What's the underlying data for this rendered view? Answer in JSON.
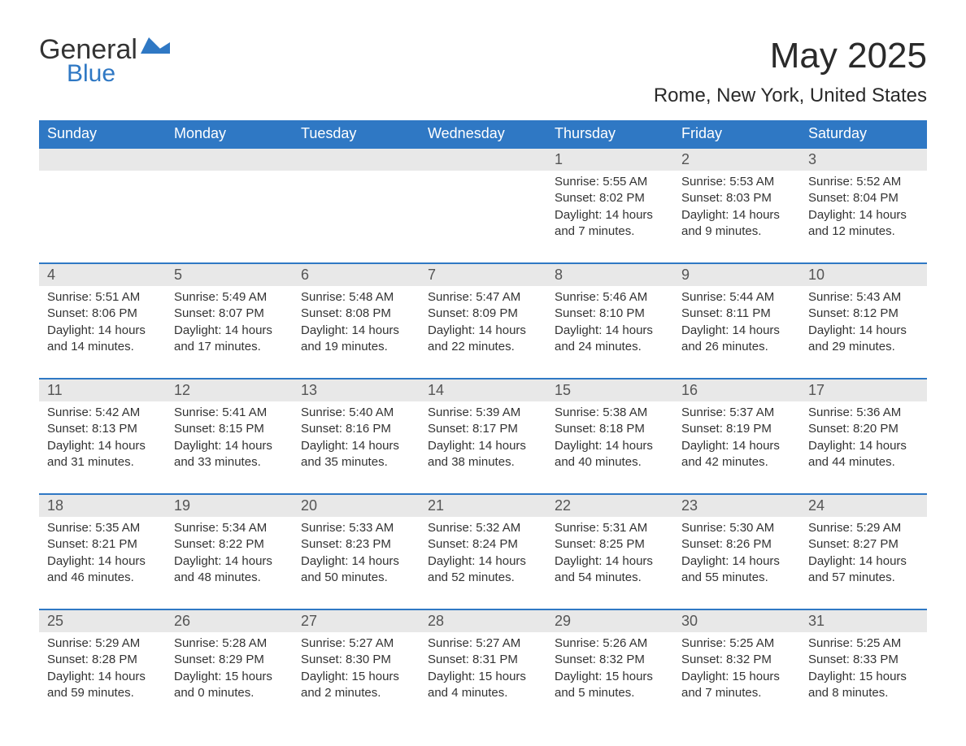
{
  "logo": {
    "text_general": "General",
    "text_blue": "Blue",
    "icon_color": "#2f78c4"
  },
  "header": {
    "title": "May 2025",
    "subtitle": "Rome, New York, United States"
  },
  "colors": {
    "header_bg": "#2f78c4",
    "header_text": "#ffffff",
    "daynum_bg": "#e8e8e8",
    "body_text": "#333333",
    "row_border": "#2f78c4",
    "page_bg": "#ffffff"
  },
  "typography": {
    "title_fontsize": 44,
    "subtitle_fontsize": 24,
    "weekday_fontsize": 18,
    "daynum_fontsize": 18,
    "body_fontsize": 15
  },
  "layout": {
    "columns": 7,
    "rows": 5
  },
  "weekdays": [
    "Sunday",
    "Monday",
    "Tuesday",
    "Wednesday",
    "Thursday",
    "Friday",
    "Saturday"
  ],
  "weeks": [
    [
      null,
      null,
      null,
      null,
      {
        "n": "1",
        "sunrise": "Sunrise: 5:55 AM",
        "sunset": "Sunset: 8:02 PM",
        "daylight": "Daylight: 14 hours and 7 minutes."
      },
      {
        "n": "2",
        "sunrise": "Sunrise: 5:53 AM",
        "sunset": "Sunset: 8:03 PM",
        "daylight": "Daylight: 14 hours and 9 minutes."
      },
      {
        "n": "3",
        "sunrise": "Sunrise: 5:52 AM",
        "sunset": "Sunset: 8:04 PM",
        "daylight": "Daylight: 14 hours and 12 minutes."
      }
    ],
    [
      {
        "n": "4",
        "sunrise": "Sunrise: 5:51 AM",
        "sunset": "Sunset: 8:06 PM",
        "daylight": "Daylight: 14 hours and 14 minutes."
      },
      {
        "n": "5",
        "sunrise": "Sunrise: 5:49 AM",
        "sunset": "Sunset: 8:07 PM",
        "daylight": "Daylight: 14 hours and 17 minutes."
      },
      {
        "n": "6",
        "sunrise": "Sunrise: 5:48 AM",
        "sunset": "Sunset: 8:08 PM",
        "daylight": "Daylight: 14 hours and 19 minutes."
      },
      {
        "n": "7",
        "sunrise": "Sunrise: 5:47 AM",
        "sunset": "Sunset: 8:09 PM",
        "daylight": "Daylight: 14 hours and 22 minutes."
      },
      {
        "n": "8",
        "sunrise": "Sunrise: 5:46 AM",
        "sunset": "Sunset: 8:10 PM",
        "daylight": "Daylight: 14 hours and 24 minutes."
      },
      {
        "n": "9",
        "sunrise": "Sunrise: 5:44 AM",
        "sunset": "Sunset: 8:11 PM",
        "daylight": "Daylight: 14 hours and 26 minutes."
      },
      {
        "n": "10",
        "sunrise": "Sunrise: 5:43 AM",
        "sunset": "Sunset: 8:12 PM",
        "daylight": "Daylight: 14 hours and 29 minutes."
      }
    ],
    [
      {
        "n": "11",
        "sunrise": "Sunrise: 5:42 AM",
        "sunset": "Sunset: 8:13 PM",
        "daylight": "Daylight: 14 hours and 31 minutes."
      },
      {
        "n": "12",
        "sunrise": "Sunrise: 5:41 AM",
        "sunset": "Sunset: 8:15 PM",
        "daylight": "Daylight: 14 hours and 33 minutes."
      },
      {
        "n": "13",
        "sunrise": "Sunrise: 5:40 AM",
        "sunset": "Sunset: 8:16 PM",
        "daylight": "Daylight: 14 hours and 35 minutes."
      },
      {
        "n": "14",
        "sunrise": "Sunrise: 5:39 AM",
        "sunset": "Sunset: 8:17 PM",
        "daylight": "Daylight: 14 hours and 38 minutes."
      },
      {
        "n": "15",
        "sunrise": "Sunrise: 5:38 AM",
        "sunset": "Sunset: 8:18 PM",
        "daylight": "Daylight: 14 hours and 40 minutes."
      },
      {
        "n": "16",
        "sunrise": "Sunrise: 5:37 AM",
        "sunset": "Sunset: 8:19 PM",
        "daylight": "Daylight: 14 hours and 42 minutes."
      },
      {
        "n": "17",
        "sunrise": "Sunrise: 5:36 AM",
        "sunset": "Sunset: 8:20 PM",
        "daylight": "Daylight: 14 hours and 44 minutes."
      }
    ],
    [
      {
        "n": "18",
        "sunrise": "Sunrise: 5:35 AM",
        "sunset": "Sunset: 8:21 PM",
        "daylight": "Daylight: 14 hours and 46 minutes."
      },
      {
        "n": "19",
        "sunrise": "Sunrise: 5:34 AM",
        "sunset": "Sunset: 8:22 PM",
        "daylight": "Daylight: 14 hours and 48 minutes."
      },
      {
        "n": "20",
        "sunrise": "Sunrise: 5:33 AM",
        "sunset": "Sunset: 8:23 PM",
        "daylight": "Daylight: 14 hours and 50 minutes."
      },
      {
        "n": "21",
        "sunrise": "Sunrise: 5:32 AM",
        "sunset": "Sunset: 8:24 PM",
        "daylight": "Daylight: 14 hours and 52 minutes."
      },
      {
        "n": "22",
        "sunrise": "Sunrise: 5:31 AM",
        "sunset": "Sunset: 8:25 PM",
        "daylight": "Daylight: 14 hours and 54 minutes."
      },
      {
        "n": "23",
        "sunrise": "Sunrise: 5:30 AM",
        "sunset": "Sunset: 8:26 PM",
        "daylight": "Daylight: 14 hours and 55 minutes."
      },
      {
        "n": "24",
        "sunrise": "Sunrise: 5:29 AM",
        "sunset": "Sunset: 8:27 PM",
        "daylight": "Daylight: 14 hours and 57 minutes."
      }
    ],
    [
      {
        "n": "25",
        "sunrise": "Sunrise: 5:29 AM",
        "sunset": "Sunset: 8:28 PM",
        "daylight": "Daylight: 14 hours and 59 minutes."
      },
      {
        "n": "26",
        "sunrise": "Sunrise: 5:28 AM",
        "sunset": "Sunset: 8:29 PM",
        "daylight": "Daylight: 15 hours and 0 minutes."
      },
      {
        "n": "27",
        "sunrise": "Sunrise: 5:27 AM",
        "sunset": "Sunset: 8:30 PM",
        "daylight": "Daylight: 15 hours and 2 minutes."
      },
      {
        "n": "28",
        "sunrise": "Sunrise: 5:27 AM",
        "sunset": "Sunset: 8:31 PM",
        "daylight": "Daylight: 15 hours and 4 minutes."
      },
      {
        "n": "29",
        "sunrise": "Sunrise: 5:26 AM",
        "sunset": "Sunset: 8:32 PM",
        "daylight": "Daylight: 15 hours and 5 minutes."
      },
      {
        "n": "30",
        "sunrise": "Sunrise: 5:25 AM",
        "sunset": "Sunset: 8:32 PM",
        "daylight": "Daylight: 15 hours and 7 minutes."
      },
      {
        "n": "31",
        "sunrise": "Sunrise: 5:25 AM",
        "sunset": "Sunset: 8:33 PM",
        "daylight": "Daylight: 15 hours and 8 minutes."
      }
    ]
  ]
}
